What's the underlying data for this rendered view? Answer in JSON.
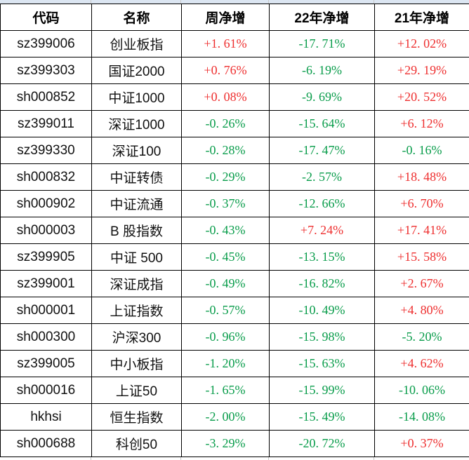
{
  "colors": {
    "up_red": "#ee2f2f",
    "down_green": "#089c4a",
    "border": "#000000",
    "top_strip_fill": "#dce6f2",
    "grid_line": "#c9c9c9"
  },
  "table": {
    "headers": [
      "代码",
      "名称",
      "周净增",
      "22年净增",
      "21年净增"
    ],
    "rows": [
      {
        "code": "sz399006",
        "name": "创业板指",
        "week": "+1. 61%",
        "y22": "-17. 71%",
        "y21": "+12. 02%"
      },
      {
        "code": "sz399303",
        "name": "国证2000",
        "week": "+0. 76%",
        "y22": "-6. 19%",
        "y21": "+29. 19%"
      },
      {
        "code": "sh000852",
        "name": "中证1000",
        "week": "+0. 08%",
        "y22": "-9. 69%",
        "y21": "+20. 52%"
      },
      {
        "code": "sz399011",
        "name": "深证1000",
        "week": "-0. 26%",
        "y22": "-15. 64%",
        "y21": "+6. 12%"
      },
      {
        "code": "sz399330",
        "name": "深证100",
        "week": "-0. 28%",
        "y22": "-17. 47%",
        "y21": "-0. 16%"
      },
      {
        "code": "sh000832",
        "name": "中证转债",
        "week": "-0. 29%",
        "y22": "-2. 57%",
        "y21": "+18. 48%"
      },
      {
        "code": "sh000902",
        "name": "中证流通",
        "week": "-0. 37%",
        "y22": "-12. 66%",
        "y21": "+6. 70%"
      },
      {
        "code": "sh000003",
        "name": "B 股指数",
        "week": "-0. 43%",
        "y22": "+7. 24%",
        "y21": "+17. 41%"
      },
      {
        "code": "sz399905",
        "name": "中证 500",
        "week": "-0. 45%",
        "y22": "-13. 15%",
        "y21": "+15. 58%"
      },
      {
        "code": "sz399001",
        "name": "深证成指",
        "week": "-0. 49%",
        "y22": "-16. 82%",
        "y21": "+2. 67%"
      },
      {
        "code": "sh000001",
        "name": "上证指数",
        "week": "-0. 57%",
        "y22": "-10. 49%",
        "y21": "+4. 80%"
      },
      {
        "code": "sh000300",
        "name": "沪深300",
        "week": "-0. 96%",
        "y22": "-15. 98%",
        "y21": "-5. 20%"
      },
      {
        "code": "sz399005",
        "name": "中小板指",
        "week": "-1. 20%",
        "y22": "-15. 63%",
        "y21": "+4. 62%"
      },
      {
        "code": "sh000016",
        "name": "上证50",
        "week": "-1. 65%",
        "y22": "-15. 99%",
        "y21": "-10. 06%"
      },
      {
        "code": "hkhsi",
        "name": "恒生指数",
        "week": "-2. 00%",
        "y22": "-15. 49%",
        "y21": "-14. 08%"
      },
      {
        "code": "sh000688",
        "name": "科创50",
        "week": "-3. 29%",
        "y22": "-20. 72%",
        "y21": "+0. 37%"
      }
    ]
  }
}
